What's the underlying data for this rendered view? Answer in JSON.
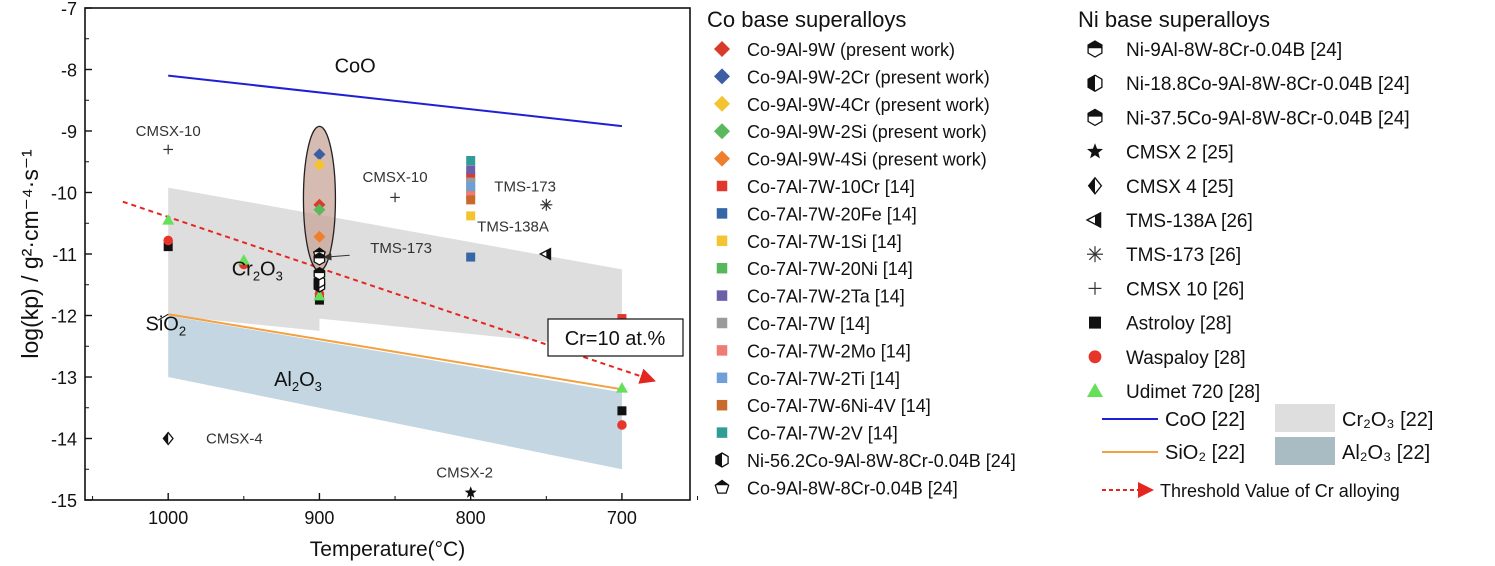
{
  "chart_data": {
    "type": "scatter",
    "xlabel": "Temperature(°C)",
    "ylabel": "log(kp) / g²·cm⁻⁴·s⁻¹",
    "xlim": [
      1055,
      655
    ],
    "ylim": [
      -15,
      -7
    ],
    "xticks": [
      1000,
      900,
      800,
      700
    ],
    "yticks": [
      -7,
      -8,
      -9,
      -10,
      -11,
      -12,
      -13,
      -14,
      -15
    ],
    "bands": [
      {
        "name": "Cr2O3 band",
        "color": "#dedede",
        "points": [
          [
            1000,
            -9.92
          ],
          [
            700,
            -11.25
          ],
          [
            700,
            -12.55
          ],
          [
            900,
            -12.05
          ],
          [
            900,
            -12.25
          ],
          [
            1000,
            -12.0
          ]
        ]
      },
      {
        "name": "Al2O3 band",
        "color": "#c3d6e1",
        "points": [
          [
            1000,
            -12.0
          ],
          [
            700,
            -13.25
          ],
          [
            700,
            -14.5
          ],
          [
            1000,
            -13.0
          ]
        ]
      }
    ],
    "lines": [
      {
        "name": "CoO",
        "color": "#1f1fd6",
        "x": [
          1000,
          700
        ],
        "y": [
          -8.1,
          -8.92
        ]
      },
      {
        "name": "SiO2",
        "color": "#f4a03e",
        "x": [
          1000,
          700
        ],
        "y": [
          -11.98,
          -13.2
        ]
      }
    ],
    "threshold": {
      "color": "#e52620",
      "x": [
        1030,
        680
      ],
      "y": [
        -10.15,
        -13.05
      ]
    },
    "band_labels": [
      {
        "main": "Cr",
        "sub": "2",
        "tail": "O",
        "sub2": "3",
        "x": 958,
        "y": -11.25
      },
      {
        "main": "Al",
        "sub": "2",
        "tail": "O",
        "sub2": "3",
        "x": 930,
        "y": -13.05
      },
      {
        "main": "CoO",
        "sub": "",
        "tail": "",
        "sub2": "",
        "x": 890,
        "y": -7.95
      },
      {
        "main": "SiO",
        "sub": "2",
        "tail": "",
        "sub2": "",
        "x": 1015,
        "y": -12.15
      }
    ],
    "annotations": [
      {
        "text": "CMSX-10",
        "x": 1000,
        "y": -9.0
      },
      {
        "text": "CMSX-10",
        "x": 850,
        "y": -9.75
      },
      {
        "text": "TMS-173",
        "x": 764,
        "y": -9.9
      },
      {
        "text": "TMS-138A",
        "x": 772,
        "y": -10.55
      },
      {
        "text": "CMSX-4",
        "x": 975,
        "y": -14.0
      },
      {
        "text": "CMSX-2",
        "x": 804,
        "y": -14.55
      },
      {
        "text": "TMS-173",
        "x": 846,
        "y": -10.9
      }
    ],
    "cr_label": "Cr=10 at.%",
    "points": [
      {
        "series": "Co-9Al-9W",
        "x": 900,
        "y": -10.2,
        "marker": "diamond",
        "color": "#d93b2b"
      },
      {
        "series": "Co-9Al-9W-2Cr",
        "x": 900,
        "y": -9.38,
        "marker": "diamond",
        "color": "#3c5fa3"
      },
      {
        "series": "Co-9Al-9W-4Cr",
        "x": 900,
        "y": -9.55,
        "marker": "diamond",
        "color": "#f4c430"
      },
      {
        "series": "Co-9Al-9W-2Si",
        "x": 900,
        "y": -10.28,
        "marker": "diamond",
        "color": "#5cb85c"
      },
      {
        "series": "Co-9Al-9W-4Si",
        "x": 900,
        "y": -10.72,
        "marker": "diamond",
        "color": "#ee7f2d"
      },
      {
        "series": "Co-7Al-7W-10Cr",
        "x": 800,
        "y": -9.75,
        "marker": "square",
        "color": "#e0382c"
      },
      {
        "series": "Co-7Al-7W-10Cr",
        "x": 700,
        "y": -12.05,
        "marker": "square",
        "color": "#e0382c"
      },
      {
        "series": "Co-7Al-7W-20Fe",
        "x": 800,
        "y": -11.05,
        "marker": "square",
        "color": "#3566a6"
      },
      {
        "series": "Co-7Al-7W-1Si",
        "x": 800,
        "y": -10.38,
        "marker": "square",
        "color": "#f4c430"
      },
      {
        "series": "Co-7Al-7W-20Ni",
        "x": 800,
        "y": -9.95,
        "marker": "square",
        "color": "#55b85a"
      },
      {
        "series": "Co-7Al-7W-2Ta",
        "x": 800,
        "y": -9.63,
        "marker": "square",
        "color": "#6d5ea8"
      },
      {
        "series": "Co-7Al-7W",
        "x": 800,
        "y": -9.83,
        "marker": "square",
        "color": "#9b9b9b"
      },
      {
        "series": "Co-7Al-7W-2Mo",
        "x": 800,
        "y": -10.05,
        "marker": "square",
        "color": "#f07a74"
      },
      {
        "series": "Co-7Al-7W-2Ti",
        "x": 800,
        "y": -9.9,
        "marker": "square",
        "color": "#6e9fd8"
      },
      {
        "series": "Co-7Al-7W-6Ni-4V",
        "x": 800,
        "y": -10.12,
        "marker": "square",
        "color": "#c96a2a"
      },
      {
        "series": "Co-7Al-7W-2V",
        "x": 800,
        "y": -9.48,
        "marker": "square",
        "color": "#2f9d95"
      },
      {
        "series": "Astroloy",
        "x": 1000,
        "y": -10.88,
        "marker": "square",
        "color": "#111111"
      },
      {
        "series": "Astroloy",
        "x": 900,
        "y": -11.75,
        "marker": "square",
        "color": "#111111"
      },
      {
        "series": "Astroloy",
        "x": 700,
        "y": -13.55,
        "marker": "square",
        "color": "#111111"
      },
      {
        "series": "Waspaloy",
        "x": 1000,
        "y": -10.78,
        "marker": "circle",
        "color": "#e8352a"
      },
      {
        "series": "Waspaloy",
        "x": 950,
        "y": -11.17,
        "marker": "circle",
        "color": "#e8352a"
      },
      {
        "series": "Waspaloy",
        "x": 900,
        "y": -11.65,
        "marker": "circle",
        "color": "#e8352a"
      },
      {
        "series": "Waspaloy",
        "x": 700,
        "y": -13.78,
        "marker": "circle",
        "color": "#e8352a"
      },
      {
        "series": "Udimet 720",
        "x": 1000,
        "y": -10.45,
        "marker": "triangle",
        "color": "#66e05a"
      },
      {
        "series": "Udimet 720",
        "x": 950,
        "y": -11.1,
        "marker": "triangle",
        "color": "#66e05a"
      },
      {
        "series": "Udimet 720",
        "x": 900,
        "y": -11.68,
        "marker": "triangle",
        "color": "#66e05a"
      },
      {
        "series": "Udimet 720",
        "x": 700,
        "y": -13.18,
        "marker": "triangle",
        "color": "#66e05a"
      },
      {
        "series": "Ni-56.2Co-9Al-8W-8Cr-0.04B",
        "x": 900,
        "y": -11.52,
        "marker": "halfhex",
        "color": "#111111"
      },
      {
        "series": "Co-9Al-8W-8Cr-0.04B",
        "x": 900,
        "y": -11.0,
        "marker": "pentagon",
        "color": "#111111"
      },
      {
        "series": "Ni-9Al-8W-8Cr-0.04B",
        "x": 900,
        "y": -11.08,
        "marker": "hextop",
        "color": "#111111"
      },
      {
        "series": "Ni-18.8Co-9Al-8W-8Cr-0.04B",
        "x": 900,
        "y": -11.45,
        "marker": "halfhex",
        "color": "#111111"
      },
      {
        "series": "Ni-37.5Co-9Al-8W-8Cr-0.04B",
        "x": 900,
        "y": -11.32,
        "marker": "hextop",
        "color": "#111111"
      },
      {
        "series": "CMSX 2",
        "x": 800,
        "y": -14.88,
        "marker": "star",
        "color": "#111111"
      },
      {
        "series": "CMSX 4",
        "x": 1000,
        "y": -14.0,
        "marker": "halfdiamond",
        "color": "#111111"
      },
      {
        "series": "TMS-138A",
        "x": 750,
        "y": -11.0,
        "marker": "halftri",
        "color": "#111111"
      },
      {
        "series": "TMS-173",
        "x": 750,
        "y": -10.2,
        "marker": "asterisk",
        "color": "#333333"
      },
      {
        "series": "CMSX 10",
        "x": 1000,
        "y": -9.3,
        "marker": "plus",
        "color": "#333333"
      },
      {
        "series": "CMSX 10",
        "x": 850,
        "y": -10.08,
        "marker": "plus",
        "color": "#333333"
      }
    ]
  },
  "legend": {
    "co_title": "Co base superalloys",
    "ni_title": "Ni base superalloys",
    "co_items": [
      {
        "label": "Co-9Al-9W  (present work)",
        "marker": "diamond",
        "color": "#d93b2b"
      },
      {
        "label": "Co-9Al-9W-2Cr (present work)",
        "marker": "diamond",
        "color": "#3c5fa3"
      },
      {
        "label": "Co-9Al-9W-4Cr (present work)",
        "marker": "diamond",
        "color": "#f4c430"
      },
      {
        "label": "Co-9Al-9W-2Si  (present work)",
        "marker": "diamond",
        "color": "#5cb85c"
      },
      {
        "label": "Co-9Al-9W-4Si  (present work)",
        "marker": "diamond",
        "color": "#ee7f2d"
      },
      {
        "label": "Co-7Al-7W-10Cr [14]",
        "marker": "square",
        "color": "#e0382c"
      },
      {
        "label": "Co-7Al-7W-20Fe [14]",
        "marker": "square",
        "color": "#3566a6"
      },
      {
        "label": "Co-7Al-7W-1Si  [14]",
        "marker": "square",
        "color": "#f4c430"
      },
      {
        "label": "Co-7Al-7W-20Ni [14]",
        "marker": "square",
        "color": "#55b85a"
      },
      {
        "label": "Co-7Al-7W-2Ta  [14]",
        "marker": "square",
        "color": "#6d5ea8"
      },
      {
        "label": "Co-7Al-7W [14]",
        "marker": "square",
        "color": "#9b9b9b"
      },
      {
        "label": "Co-7Al-7W-2Mo [14]",
        "marker": "square",
        "color": "#f07a74"
      },
      {
        "label": "Co-7Al-7W-2Ti  [14]",
        "marker": "square",
        "color": "#6e9fd8"
      },
      {
        "label": "Co-7Al-7W-6Ni-4V [14]",
        "marker": "square",
        "color": "#c96a2a"
      },
      {
        "label": "Co-7Al-7W-2V  [14]",
        "marker": "square",
        "color": "#2f9d95"
      },
      {
        "label": "Ni-56.2Co-9Al-8W-8Cr-0.04B [24]",
        "marker": "halfhex",
        "color": "#111111"
      },
      {
        "label": "Co-9Al-8W-8Cr-0.04B [24]",
        "marker": "pentagon",
        "color": "#111111"
      }
    ],
    "ni_items": [
      {
        "label": "Ni-9Al-8W-8Cr-0.04B [24]",
        "marker": "hextop",
        "color": "#111111"
      },
      {
        "label": "Ni-18.8Co-9Al-8W-8Cr-0.04B [24]",
        "marker": "halfhex",
        "color": "#111111"
      },
      {
        "label": "Ni-37.5Co-9Al-8W-8Cr-0.04B [24]",
        "marker": "hextop",
        "color": "#111111"
      },
      {
        "label": "CMSX 2 [25]",
        "marker": "star",
        "color": "#111111"
      },
      {
        "label": "CMSX 4 [25]",
        "marker": "halfdiamond",
        "color": "#111111"
      },
      {
        "label": "TMS-138A [26]",
        "marker": "halftri",
        "color": "#111111"
      },
      {
        "label": "TMS-173 [26]",
        "marker": "asterisk",
        "color": "#333333"
      },
      {
        "label": "CMSX 10 [26]",
        "marker": "plus",
        "color": "#333333"
      },
      {
        "label": "Astroloy [28]",
        "marker": "square",
        "color": "#111111"
      },
      {
        "label": "Waspaloy [28]",
        "marker": "circle",
        "color": "#e8352a"
      },
      {
        "label": "Udimet 720 [28]",
        "marker": "triangle",
        "color": "#66e05a"
      }
    ],
    "line_items": [
      {
        "label": "CoO [22]",
        "color": "#1f1fd6"
      },
      {
        "label": "SiO₂ [22]",
        "color": "#f4a03e"
      }
    ],
    "band_items": [
      {
        "label": "Cr₂O₃ [22]",
        "color": "#dedede"
      },
      {
        "label": "Al₂O₃ [22]",
        "color": "#a9bcc4"
      }
    ],
    "threshold_label": "Threshold Value of Cr alloying"
  }
}
